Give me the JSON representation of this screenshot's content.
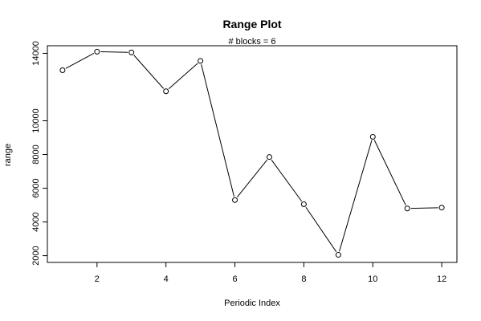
{
  "chart_data": {
    "type": "line",
    "title": "Range Plot",
    "subtitle": "# blocks =  6",
    "xlabel": "Periodic Index",
    "ylabel": "range",
    "x": [
      1,
      2,
      3,
      4,
      5,
      6,
      7,
      8,
      9,
      10,
      11,
      12
    ],
    "series": [
      {
        "values": [
          13000,
          14100,
          14050,
          11750,
          13550,
          5300,
          7850,
          5050,
          2050,
          9050,
          4800,
          4850
        ]
      }
    ],
    "xlim": [
      0.56,
      12.44
    ],
    "ylim": [
      1600,
      14450
    ],
    "xticks": [
      2,
      4,
      6,
      8,
      10,
      12
    ],
    "yticks": [
      2000,
      4000,
      6000,
      8000,
      10000,
      14000
    ],
    "markers": "open-circle",
    "grid": false,
    "legend": "none",
    "colors": {
      "line": "#000000",
      "background": "#ffffff"
    }
  }
}
